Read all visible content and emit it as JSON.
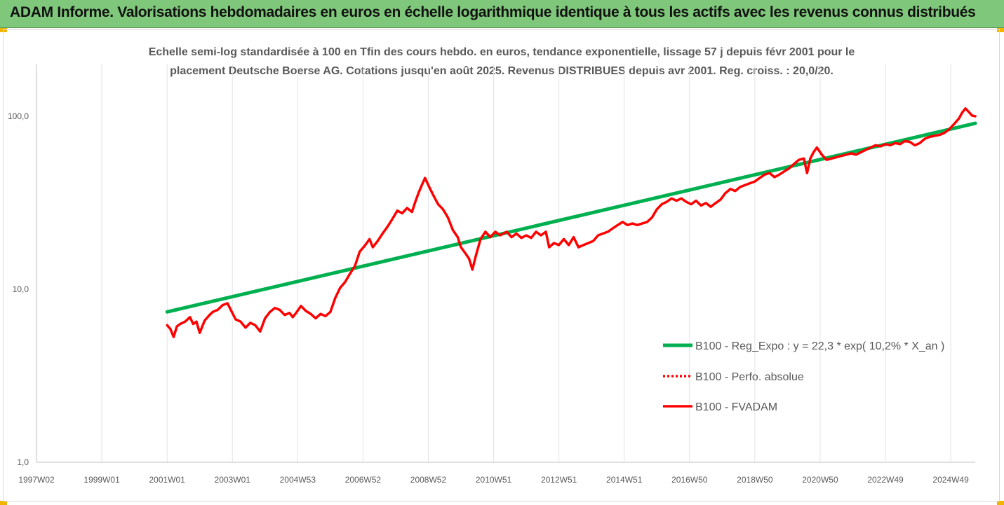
{
  "header": {
    "title": "ADAM Informe. Valorisations hebdomadaires en euros en échelle logarithmique identique à tous les actifs avec les revenus connus distribués"
  },
  "colors": {
    "banner": "#7fc77a",
    "regression": "#00b050",
    "series": "#ff0000",
    "accent": "#f0b400"
  },
  "chart_data": {
    "type": "line",
    "title_lines": [
      "Echelle semi-log standardisée à 100 en Tfin des cours hebdo. en euros, tendance exponentielle, lissage 57 j depuis févr 2001 pour le",
      "placement Deutsche Boerse AG. Cotations jusqu'en août 2025. Revenus DISTRIBUES depuis avr 2001. Reg. croiss. : 20,0/20."
    ],
    "y_scale": "log",
    "ylim": [
      1,
      200
    ],
    "y_ticks": [
      {
        "value": 1,
        "label": "1,0"
      },
      {
        "value": 10,
        "label": "10,0"
      },
      {
        "value": 100,
        "label": "100,0"
      }
    ],
    "xlim": [
      1997.0,
      2025.75
    ],
    "x_ticks": [
      {
        "value": 1997.0,
        "label": "1997W02"
      },
      {
        "value": 1999.0,
        "label": "1999W01"
      },
      {
        "value": 2001.0,
        "label": "2001W01"
      },
      {
        "value": 2003.0,
        "label": "2003W01"
      },
      {
        "value": 2005.0,
        "label": "2004W53"
      },
      {
        "value": 2007.0,
        "label": "2006W52"
      },
      {
        "value": 2009.0,
        "label": "2008W52"
      },
      {
        "value": 2011.0,
        "label": "2010W51"
      },
      {
        "value": 2013.0,
        "label": "2012W51"
      },
      {
        "value": 2015.0,
        "label": "2014W51"
      },
      {
        "value": 2017.0,
        "label": "2016W50"
      },
      {
        "value": 2019.0,
        "label": "2018W50"
      },
      {
        "value": 2021.0,
        "label": "2020W50"
      },
      {
        "value": 2023.0,
        "label": "2022W49"
      },
      {
        "value": 2025.0,
        "label": "2024W49"
      }
    ],
    "grid": "vertical",
    "legend_position": "right",
    "series": [
      {
        "name": "B100 - Reg_Expo : y = 22,3 * exp( 10,2% *  X_an )",
        "style": "solid",
        "color": "#00b050",
        "points": [
          [
            2001.0,
            7.4
          ],
          [
            2025.75,
            91
          ]
        ]
      },
      {
        "name": "B100 - Perfo. absolue",
        "style": "dotted",
        "color": "#ff0000",
        "points": []
      },
      {
        "name": "B100 - FVADAM",
        "style": "solid",
        "color": "#ff0000",
        "points": [
          [
            2001.0,
            6.2
          ],
          [
            2001.1,
            5.9
          ],
          [
            2001.2,
            5.3
          ],
          [
            2001.3,
            6.1
          ],
          [
            2001.4,
            6.3
          ],
          [
            2001.55,
            6.5
          ],
          [
            2001.7,
            6.9
          ],
          [
            2001.8,
            6.3
          ],
          [
            2001.9,
            6.5
          ],
          [
            2002.0,
            5.6
          ],
          [
            2002.15,
            6.6
          ],
          [
            2002.3,
            7.1
          ],
          [
            2002.4,
            7.4
          ],
          [
            2002.55,
            7.6
          ],
          [
            2002.7,
            8.1
          ],
          [
            2002.85,
            8.3
          ],
          [
            2002.95,
            7.6
          ],
          [
            2003.1,
            6.7
          ],
          [
            2003.25,
            6.5
          ],
          [
            2003.4,
            6.0
          ],
          [
            2003.55,
            6.4
          ],
          [
            2003.7,
            6.2
          ],
          [
            2003.85,
            5.7
          ],
          [
            2004.0,
            6.8
          ],
          [
            2004.15,
            7.4
          ],
          [
            2004.3,
            7.8
          ],
          [
            2004.45,
            7.6
          ],
          [
            2004.6,
            7.1
          ],
          [
            2004.75,
            7.3
          ],
          [
            2004.85,
            6.9
          ],
          [
            2004.95,
            7.3
          ],
          [
            2005.1,
            8.0
          ],
          [
            2005.25,
            7.5
          ],
          [
            2005.4,
            7.2
          ],
          [
            2005.55,
            6.8
          ],
          [
            2005.7,
            7.2
          ],
          [
            2005.85,
            7.0
          ],
          [
            2006.0,
            7.4
          ],
          [
            2006.15,
            8.9
          ],
          [
            2006.3,
            10.2
          ],
          [
            2006.45,
            11.0
          ],
          [
            2006.6,
            12.3
          ],
          [
            2006.75,
            13.6
          ],
          [
            2006.9,
            16.5
          ],
          [
            2007.05,
            17.8
          ],
          [
            2007.2,
            19.5
          ],
          [
            2007.3,
            17.5
          ],
          [
            2007.45,
            19.0
          ],
          [
            2007.6,
            21.0
          ],
          [
            2007.75,
            23.0
          ],
          [
            2007.9,
            25.5
          ],
          [
            2008.05,
            28.5
          ],
          [
            2008.2,
            27.5
          ],
          [
            2008.35,
            29.5
          ],
          [
            2008.5,
            28.0
          ],
          [
            2008.6,
            32.0
          ],
          [
            2008.7,
            36.0
          ],
          [
            2008.8,
            40.0
          ],
          [
            2008.9,
            44.0
          ],
          [
            2009.0,
            40.0
          ],
          [
            2009.15,
            35.0
          ],
          [
            2009.3,
            31.0
          ],
          [
            2009.45,
            29.0
          ],
          [
            2009.6,
            26.0
          ],
          [
            2009.75,
            22.0
          ],
          [
            2009.9,
            20.0
          ],
          [
            2010.0,
            17.5
          ],
          [
            2010.15,
            16.0
          ],
          [
            2010.25,
            15.0
          ],
          [
            2010.35,
            13.0
          ],
          [
            2010.45,
            15.5
          ],
          [
            2010.6,
            19.5
          ],
          [
            2010.75,
            21.5
          ],
          [
            2010.9,
            20.0
          ],
          [
            2011.05,
            21.5
          ],
          [
            2011.2,
            20.5
          ],
          [
            2011.4,
            21.5
          ],
          [
            2011.55,
            20.0
          ],
          [
            2011.7,
            21.0
          ],
          [
            2011.85,
            19.8
          ],
          [
            2012.0,
            20.5
          ],
          [
            2012.15,
            19.8
          ],
          [
            2012.3,
            21.5
          ],
          [
            2012.45,
            20.5
          ],
          [
            2012.6,
            21.5
          ],
          [
            2012.7,
            17.5
          ],
          [
            2012.85,
            18.5
          ],
          [
            2013.0,
            18.0
          ],
          [
            2013.15,
            19.5
          ],
          [
            2013.3,
            18.0
          ],
          [
            2013.45,
            20.0
          ],
          [
            2013.6,
            17.5
          ],
          [
            2013.75,
            18.0
          ],
          [
            2013.9,
            18.5
          ],
          [
            2014.05,
            19.0
          ],
          [
            2014.2,
            20.5
          ],
          [
            2014.35,
            21.0
          ],
          [
            2014.5,
            21.5
          ],
          [
            2014.65,
            22.5
          ],
          [
            2014.8,
            23.5
          ],
          [
            2014.95,
            24.5
          ],
          [
            2015.1,
            23.5
          ],
          [
            2015.25,
            24.0
          ],
          [
            2015.4,
            23.5
          ],
          [
            2015.55,
            24.0
          ],
          [
            2015.7,
            24.5
          ],
          [
            2015.85,
            26.0
          ],
          [
            2016.0,
            29.0
          ],
          [
            2016.15,
            31.0
          ],
          [
            2016.3,
            32.0
          ],
          [
            2016.45,
            33.5
          ],
          [
            2016.6,
            32.5
          ],
          [
            2016.75,
            33.5
          ],
          [
            2016.9,
            32.0
          ],
          [
            2017.05,
            31.0
          ],
          [
            2017.2,
            32.5
          ],
          [
            2017.35,
            30.5
          ],
          [
            2017.5,
            31.5
          ],
          [
            2017.65,
            30.0
          ],
          [
            2017.8,
            31.5
          ],
          [
            2017.95,
            33.0
          ],
          [
            2018.1,
            36.0
          ],
          [
            2018.25,
            38.0
          ],
          [
            2018.4,
            37.0
          ],
          [
            2018.55,
            39.0
          ],
          [
            2018.7,
            40.0
          ],
          [
            2018.85,
            41.0
          ],
          [
            2019.0,
            42.0
          ],
          [
            2019.15,
            44.0
          ],
          [
            2019.3,
            46.0
          ],
          [
            2019.45,
            47.0
          ],
          [
            2019.6,
            44.5
          ],
          [
            2019.75,
            46.0
          ],
          [
            2019.9,
            48.0
          ],
          [
            2020.05,
            50.0
          ],
          [
            2020.2,
            53.0
          ],
          [
            2020.35,
            56.0
          ],
          [
            2020.5,
            57.0
          ],
          [
            2020.6,
            47.0
          ],
          [
            2020.7,
            57.0
          ],
          [
            2020.8,
            62.0
          ],
          [
            2020.9,
            66.0
          ],
          [
            2021.05,
            60.0
          ],
          [
            2021.2,
            56.0
          ],
          [
            2021.35,
            57.0
          ],
          [
            2021.5,
            58.0
          ],
          [
            2021.65,
            59.0
          ],
          [
            2021.8,
            60.0
          ],
          [
            2021.95,
            61.0
          ],
          [
            2022.1,
            60.0
          ],
          [
            2022.25,
            62.0
          ],
          [
            2022.4,
            64.0
          ],
          [
            2022.55,
            66.0
          ],
          [
            2022.7,
            68.0
          ],
          [
            2022.85,
            67.0
          ],
          [
            2023.0,
            69.0
          ],
          [
            2023.15,
            68.0
          ],
          [
            2023.3,
            70.0
          ],
          [
            2023.45,
            69.0
          ],
          [
            2023.6,
            72.0
          ],
          [
            2023.75,
            71.0
          ],
          [
            2023.9,
            68.0
          ],
          [
            2024.05,
            70.0
          ],
          [
            2024.2,
            74.0
          ],
          [
            2024.35,
            76.0
          ],
          [
            2024.5,
            77.0
          ],
          [
            2024.65,
            78.0
          ],
          [
            2024.8,
            80.0
          ],
          [
            2024.95,
            84.0
          ],
          [
            2025.1,
            90.0
          ],
          [
            2025.25,
            97.0
          ],
          [
            2025.35,
            105.0
          ],
          [
            2025.45,
            111.0
          ],
          [
            2025.55,
            106.0
          ],
          [
            2025.65,
            101.0
          ],
          [
            2025.75,
            100.0
          ]
        ]
      }
    ]
  }
}
